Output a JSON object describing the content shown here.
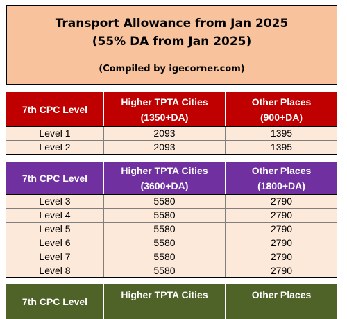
{
  "title": {
    "line1": "Transport Allowance from Jan 2025",
    "line2": "(55% DA from Jan 2025)",
    "line3": "(Compiled by igecorner.com)"
  },
  "colors": {
    "title_bg": "#f8c39c",
    "row_bg": "#fde9d9",
    "group1": "#c00000",
    "group2": "#7030a0",
    "group3": "#4f6228"
  },
  "groups": [
    {
      "col1": "7th CPC Level",
      "col2_line1": "Higher TPTA Cities",
      "col2_line2": "(1350+DA)",
      "col3_line1": "Other Places",
      "col3_line2": "(900+DA)",
      "rows": [
        {
          "level": "Level 1",
          "higher": "2093",
          "other": "1395"
        },
        {
          "level": "Level 2",
          "higher": "2093",
          "other": "1395"
        }
      ]
    },
    {
      "col1": "7th CPC Level",
      "col2_line1": "Higher TPTA Cities",
      "col2_line2": "(3600+DA)",
      "col3_line1": "Other Places",
      "col3_line2": "(1800+DA)",
      "rows": [
        {
          "level": "Level 3",
          "higher": "5580",
          "other": "2790"
        },
        {
          "level": "Level 4",
          "higher": "5580",
          "other": "2790"
        },
        {
          "level": "Level 5",
          "higher": "5580",
          "other": "2790"
        },
        {
          "level": "Level 6",
          "higher": "5580",
          "other": "2790"
        },
        {
          "level": "Level 7",
          "higher": "5580",
          "other": "2790"
        },
        {
          "level": "Level 8",
          "higher": "5580",
          "other": "2790"
        }
      ]
    },
    {
      "col1": "7th CPC Level",
      "col2_line1": "Higher TPTA Cities",
      "col3_line1": "Other Places"
    }
  ]
}
